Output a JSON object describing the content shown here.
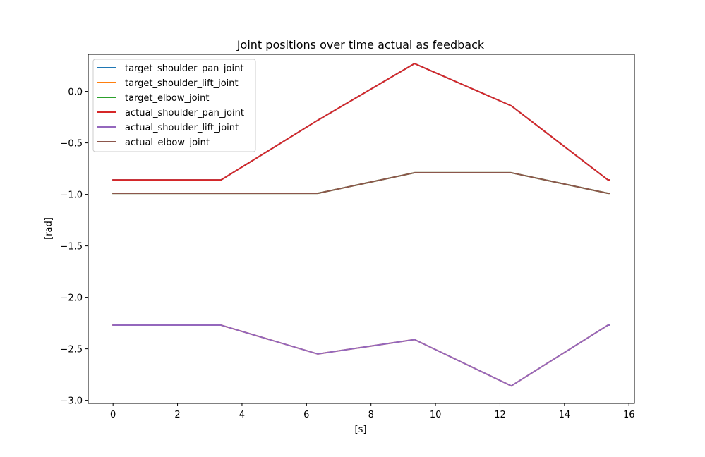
{
  "chart_data": {
    "type": "line",
    "title": "Joint positions over time actual as feedback",
    "xlabel": "[s]",
    "ylabel": "[rad]",
    "xlim": [
      -0.77,
      16.17
    ],
    "ylim": [
      -3.03,
      0.36
    ],
    "xticks": [
      0,
      2,
      4,
      6,
      8,
      10,
      12,
      14,
      16
    ],
    "xtick_labels": [
      "0",
      "2",
      "4",
      "6",
      "8",
      "10",
      "12",
      "14",
      "16"
    ],
    "yticks": [
      0.0,
      -0.5,
      -1.0,
      -1.5,
      -2.0,
      -2.5,
      -3.0
    ],
    "ytick_labels": [
      "0.0",
      "−0.5",
      "−1.0",
      "−1.5",
      "−2.0",
      "−2.5",
      "−3.0"
    ],
    "grid": false,
    "legend_position": "top-left",
    "series": [
      {
        "name": "target_shoulder_pan_joint",
        "color": "#1f77b4",
        "x": [
          0,
          3.35,
          6.35,
          9.35,
          12.35,
          15.35,
          15.4
        ],
        "y": [
          -0.86,
          -0.86,
          -0.28,
          0.27,
          -0.14,
          -0.86,
          -0.86
        ]
      },
      {
        "name": "target_shoulder_lift_joint",
        "color": "#ff7f0e",
        "x": [
          0,
          3.35,
          6.35,
          9.35,
          12.35,
          15.35,
          15.4
        ],
        "y": [
          -2.27,
          -2.27,
          -2.55,
          -2.41,
          -2.86,
          -2.27,
          -2.27
        ]
      },
      {
        "name": "target_elbow_joint",
        "color": "#2ca02c",
        "x": [
          0,
          3.35,
          6.35,
          9.35,
          12.35,
          15.35,
          15.4
        ],
        "y": [
          -0.99,
          -0.99,
          -0.99,
          -0.79,
          -0.79,
          -0.99,
          -0.99
        ]
      },
      {
        "name": "actual_shoulder_pan_joint",
        "color": "#d62728",
        "x": [
          0,
          3.35,
          6.35,
          9.35,
          12.35,
          15.35,
          15.4
        ],
        "y": [
          -0.86,
          -0.86,
          -0.28,
          0.27,
          -0.14,
          -0.86,
          -0.86
        ]
      },
      {
        "name": "actual_shoulder_lift_joint",
        "color": "#9467bd",
        "x": [
          0,
          3.35,
          6.35,
          9.35,
          12.35,
          15.35,
          15.4
        ],
        "y": [
          -2.27,
          -2.27,
          -2.55,
          -2.41,
          -2.86,
          -2.27,
          -2.27
        ]
      },
      {
        "name": "actual_elbow_joint",
        "color": "#8c564b",
        "x": [
          0,
          3.35,
          6.35,
          9.35,
          12.35,
          15.35,
          15.4
        ],
        "y": [
          -0.99,
          -0.99,
          -0.99,
          -0.79,
          -0.79,
          -0.99,
          -0.99
        ]
      }
    ]
  }
}
